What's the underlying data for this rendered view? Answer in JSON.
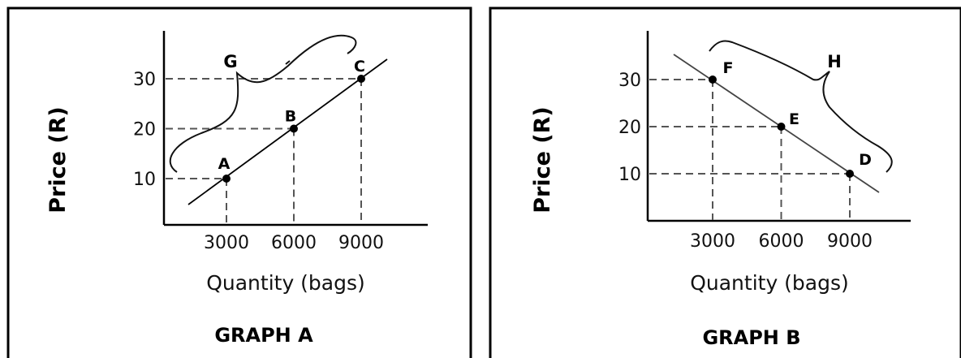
{
  "chart_data": [
    {
      "type": "line",
      "title": "GRAPH A",
      "xlabel": "Quantity (bags)",
      "ylabel": "Price (R)",
      "x_ticks": [
        3000,
        6000,
        9000
      ],
      "y_ticks": [
        10,
        20,
        30
      ],
      "points": [
        {
          "label": "A",
          "x": 3000,
          "y": 10
        },
        {
          "label": "B",
          "x": 6000,
          "y": 20
        },
        {
          "label": "C",
          "x": 9000,
          "y": 30
        }
      ],
      "bracket_label": "G",
      "grid": false
    },
    {
      "type": "line",
      "title": "GRAPH B",
      "xlabel": "Quantity (bags)",
      "ylabel": "Price (R)",
      "x_ticks": [
        3000,
        6000,
        9000
      ],
      "y_ticks": [
        10,
        20,
        30
      ],
      "points": [
        {
          "label": "F",
          "x": 3000,
          "y": 30
        },
        {
          "label": "E",
          "x": 6000,
          "y": 20
        },
        {
          "label": "D",
          "x": 9000,
          "y": 10
        }
      ],
      "bracket_label": "H",
      "grid": false
    }
  ]
}
